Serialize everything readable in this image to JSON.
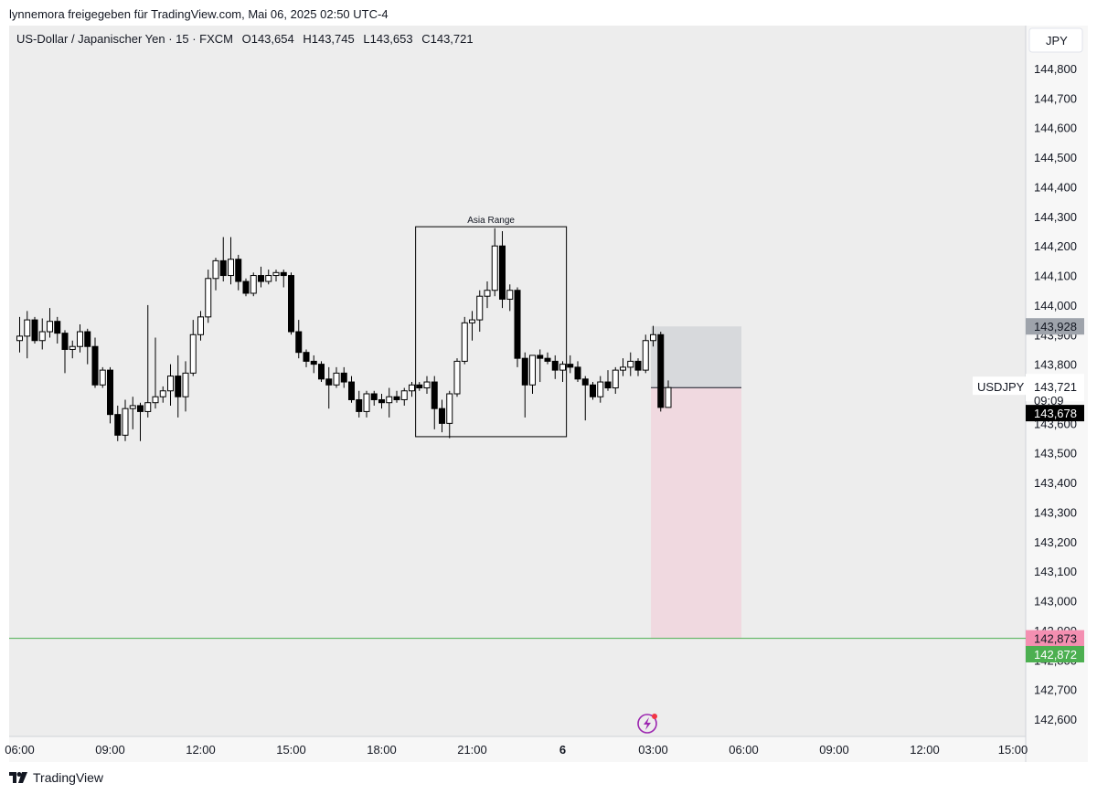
{
  "header": {
    "shared_by": "lynnemora freigegeben für TradingView.com, Mai 06, 2025 02:50 UTC-4"
  },
  "brand": {
    "name": "TradingView",
    "logo_icon": "tradingview-logo-icon"
  },
  "legend": {
    "symbol": "US-Dollar / Japanischer Yen · 15 · FXCM",
    "o": "O143,654",
    "h": "H143,745",
    "l": "L143,653",
    "c": "C143,721"
  },
  "currency_label": "JPY",
  "colors": {
    "pane_bg": "#ededed",
    "axis_bg": "#f7f7f7",
    "up_fill": "#ffffff",
    "down_fill": "#000000",
    "green_line": "#4caf50",
    "stop_zone": "#d7d9dc",
    "target_zone": "#f0d9e0",
    "pink_label": "#f48fb1",
    "green_label": "#4caf50",
    "gray_label": "#9ea3ab"
  },
  "chart_data": {
    "type": "candlestick",
    "symbol": "USDJPY",
    "interval": "15",
    "ylim": [
      142550,
      144880
    ],
    "y_ticks": [
      144800,
      144700,
      144600,
      144500,
      144400,
      144300,
      144200,
      144100,
      144000,
      143900,
      143800,
      143700,
      143600,
      143500,
      143400,
      143300,
      143200,
      143100,
      143000,
      142900,
      142800,
      142700,
      142600
    ],
    "y_tick_labels": [
      "144,800",
      "144,700",
      "144,600",
      "144,500",
      "144,400",
      "144,300",
      "144,200",
      "144,100",
      "144,000",
      "143,900",
      "143,800",
      "143,700",
      "143,600",
      "143,500",
      "143,400",
      "143,300",
      "143,200",
      "143,100",
      "143,000",
      "142,900",
      "142,800",
      "142,700",
      "142,600"
    ],
    "x_ticks": [
      {
        "label": "06:00",
        "t": 0
      },
      {
        "label": "09:00",
        "t": 12
      },
      {
        "label": "12:00",
        "t": 24
      },
      {
        "label": "15:00",
        "t": 36
      },
      {
        "label": "18:00",
        "t": 48
      },
      {
        "label": "21:00",
        "t": 60
      },
      {
        "label": "6",
        "t": 72,
        "bold": true
      },
      {
        "label": "03:00",
        "t": 84
      },
      {
        "label": "06:00",
        "t": 96
      },
      {
        "label": "09:00",
        "t": 108
      },
      {
        "label": "12:00",
        "t": 120
      },
      {
        "label": "15:00",
        "t": 132
      }
    ],
    "candles": [
      {
        "o": 143880,
        "h": 143960,
        "l": 143840,
        "c": 143895
      },
      {
        "o": 143895,
        "h": 143980,
        "l": 143820,
        "c": 143950
      },
      {
        "o": 143950,
        "h": 143960,
        "l": 143870,
        "c": 143880
      },
      {
        "o": 143880,
        "h": 143955,
        "l": 143850,
        "c": 143910
      },
      {
        "o": 143910,
        "h": 143990,
        "l": 143890,
        "c": 143945
      },
      {
        "o": 143945,
        "h": 143960,
        "l": 143870,
        "c": 143905
      },
      {
        "o": 143905,
        "h": 143915,
        "l": 143770,
        "c": 143850
      },
      {
        "o": 143850,
        "h": 143880,
        "l": 143820,
        "c": 143860
      },
      {
        "o": 143860,
        "h": 143935,
        "l": 143840,
        "c": 143910
      },
      {
        "o": 143910,
        "h": 143920,
        "l": 143800,
        "c": 143860
      },
      {
        "o": 143860,
        "h": 143890,
        "l": 143720,
        "c": 143730
      },
      {
        "o": 143730,
        "h": 143790,
        "l": 143720,
        "c": 143780
      },
      {
        "o": 143780,
        "h": 143790,
        "l": 143600,
        "c": 143630
      },
      {
        "o": 143630,
        "h": 143660,
        "l": 143540,
        "c": 143560
      },
      {
        "o": 143560,
        "h": 143680,
        "l": 143540,
        "c": 143650
      },
      {
        "o": 143650,
        "h": 143690,
        "l": 143580,
        "c": 143660
      },
      {
        "o": 143660,
        "h": 143670,
        "l": 143540,
        "c": 143640
      },
      {
        "o": 143640,
        "h": 144000,
        "l": 143620,
        "c": 143670
      },
      {
        "o": 143670,
        "h": 143890,
        "l": 143650,
        "c": 143690
      },
      {
        "o": 143690,
        "h": 143725,
        "l": 143670,
        "c": 143710
      },
      {
        "o": 143710,
        "h": 143800,
        "l": 143660,
        "c": 143760
      },
      {
        "o": 143760,
        "h": 143830,
        "l": 143620,
        "c": 143690
      },
      {
        "o": 143690,
        "h": 143810,
        "l": 143640,
        "c": 143770
      },
      {
        "o": 143770,
        "h": 143950,
        "l": 143760,
        "c": 143900
      },
      {
        "o": 143900,
        "h": 143980,
        "l": 143880,
        "c": 143960
      },
      {
        "o": 143960,
        "h": 144120,
        "l": 143940,
        "c": 144090
      },
      {
        "o": 144090,
        "h": 144160,
        "l": 144050,
        "c": 144150
      },
      {
        "o": 144150,
        "h": 144230,
        "l": 144080,
        "c": 144100
      },
      {
        "o": 144100,
        "h": 144230,
        "l": 144070,
        "c": 144155
      },
      {
        "o": 144155,
        "h": 144170,
        "l": 144050,
        "c": 144080
      },
      {
        "o": 144080,
        "h": 144090,
        "l": 144030,
        "c": 144040
      },
      {
        "o": 144040,
        "h": 144110,
        "l": 144030,
        "c": 144100
      },
      {
        "o": 144100,
        "h": 144130,
        "l": 144060,
        "c": 144080
      },
      {
        "o": 144080,
        "h": 144120,
        "l": 144070,
        "c": 144100
      },
      {
        "o": 144100,
        "h": 144120,
        "l": 144080,
        "c": 144110
      },
      {
        "o": 144110,
        "h": 144120,
        "l": 144060,
        "c": 144100
      },
      {
        "o": 144100,
        "h": 144110,
        "l": 143900,
        "c": 143910
      },
      {
        "o": 143910,
        "h": 143950,
        "l": 143820,
        "c": 143840
      },
      {
        "o": 143840,
        "h": 143850,
        "l": 143790,
        "c": 143810
      },
      {
        "o": 143810,
        "h": 143830,
        "l": 143770,
        "c": 143800
      },
      {
        "o": 143800,
        "h": 143810,
        "l": 143740,
        "c": 143750
      },
      {
        "o": 143750,
        "h": 143790,
        "l": 143650,
        "c": 143730
      },
      {
        "o": 143730,
        "h": 143790,
        "l": 143720,
        "c": 143770
      },
      {
        "o": 143770,
        "h": 143790,
        "l": 143720,
        "c": 143740
      },
      {
        "o": 143740,
        "h": 143760,
        "l": 143670,
        "c": 143680
      },
      {
        "o": 143680,
        "h": 143710,
        "l": 143620,
        "c": 143640
      },
      {
        "o": 143640,
        "h": 143710,
        "l": 143620,
        "c": 143700
      },
      {
        "o": 143700,
        "h": 143710,
        "l": 143660,
        "c": 143680
      },
      {
        "o": 143680,
        "h": 143700,
        "l": 143650,
        "c": 143670
      },
      {
        "o": 143670,
        "h": 143720,
        "l": 143620,
        "c": 143690
      },
      {
        "o": 143690,
        "h": 143710,
        "l": 143670,
        "c": 143680
      },
      {
        "o": 143680,
        "h": 143720,
        "l": 143660,
        "c": 143710
      },
      {
        "o": 143710,
        "h": 143740,
        "l": 143690,
        "c": 143730
      },
      {
        "o": 143730,
        "h": 143740,
        "l": 143710,
        "c": 143720
      },
      {
        "o": 143720,
        "h": 143760,
        "l": 143700,
        "c": 143740
      },
      {
        "o": 143740,
        "h": 143760,
        "l": 143580,
        "c": 143650
      },
      {
        "o": 143650,
        "h": 143680,
        "l": 143570,
        "c": 143600
      },
      {
        "o": 143600,
        "h": 143710,
        "l": 143550,
        "c": 143700
      },
      {
        "o": 143700,
        "h": 143820,
        "l": 143690,
        "c": 143810
      },
      {
        "o": 143810,
        "h": 143960,
        "l": 143800,
        "c": 143940
      },
      {
        "o": 143940,
        "h": 143980,
        "l": 143880,
        "c": 143950
      },
      {
        "o": 143950,
        "h": 144050,
        "l": 143910,
        "c": 144030
      },
      {
        "o": 144030,
        "h": 144080,
        "l": 143990,
        "c": 144050
      },
      {
        "o": 144050,
        "h": 144260,
        "l": 144030,
        "c": 144200
      },
      {
        "o": 144200,
        "h": 144250,
        "l": 143990,
        "c": 144020
      },
      {
        "o": 144020,
        "h": 144070,
        "l": 143980,
        "c": 144050
      },
      {
        "o": 144050,
        "h": 144060,
        "l": 143790,
        "c": 143820
      },
      {
        "o": 143820,
        "h": 143840,
        "l": 143620,
        "c": 143730
      },
      {
        "o": 143730,
        "h": 143830,
        "l": 143700,
        "c": 143830
      },
      {
        "o": 143830,
        "h": 143850,
        "l": 143740,
        "c": 143820
      },
      {
        "o": 143820,
        "h": 143840,
        "l": 143800,
        "c": 143810
      },
      {
        "o": 143810,
        "h": 143830,
        "l": 143750,
        "c": 143780
      },
      {
        "o": 143780,
        "h": 143810,
        "l": 143740,
        "c": 143800
      },
      {
        "o": 143800,
        "h": 143830,
        "l": 143770,
        "c": 143790
      },
      {
        "o": 143790,
        "h": 143810,
        "l": 143740,
        "c": 143750
      },
      {
        "o": 143750,
        "h": 143760,
        "l": 143610,
        "c": 143730
      },
      {
        "o": 143730,
        "h": 143740,
        "l": 143680,
        "c": 143690
      },
      {
        "o": 143690,
        "h": 143760,
        "l": 143670,
        "c": 143740
      },
      {
        "o": 143740,
        "h": 143780,
        "l": 143710,
        "c": 143720
      },
      {
        "o": 143720,
        "h": 143790,
        "l": 143700,
        "c": 143780
      },
      {
        "o": 143780,
        "h": 143820,
        "l": 143760,
        "c": 143790
      },
      {
        "o": 143790,
        "h": 143840,
        "l": 143760,
        "c": 143810
      },
      {
        "o": 143810,
        "h": 143820,
        "l": 143760,
        "c": 143780
      },
      {
        "o": 143780,
        "h": 143900,
        "l": 143770,
        "c": 143880
      },
      {
        "o": 143880,
        "h": 143930,
        "l": 143860,
        "c": 143900
      },
      {
        "o": 143900,
        "h": 143910,
        "l": 143640,
        "c": 143654
      },
      {
        "o": 143654,
        "h": 143745,
        "l": 143653,
        "c": 143721
      }
    ],
    "annotations": {
      "asia_range": {
        "label": "Asia Range",
        "from": 53,
        "to": 73,
        "high": 144265,
        "low": 143555
      },
      "position": {
        "from": 84,
        "to": 96,
        "entry": 143721,
        "stop": 143928,
        "target": 142873
      }
    },
    "green_line": 142873,
    "price_labels": [
      {
        "value": 143928,
        "text": "143,928",
        "style": "gray"
      },
      {
        "value": 143721,
        "text": "143,721",
        "style": "current",
        "symbol": "USDJPY",
        "countdown": "09:09"
      },
      {
        "value": 143678,
        "text": "143,678",
        "style": "black"
      },
      {
        "value": 142873,
        "text": "142,873",
        "style": "pink"
      },
      {
        "value": 142872,
        "text": "142,872",
        "style": "green"
      }
    ]
  }
}
